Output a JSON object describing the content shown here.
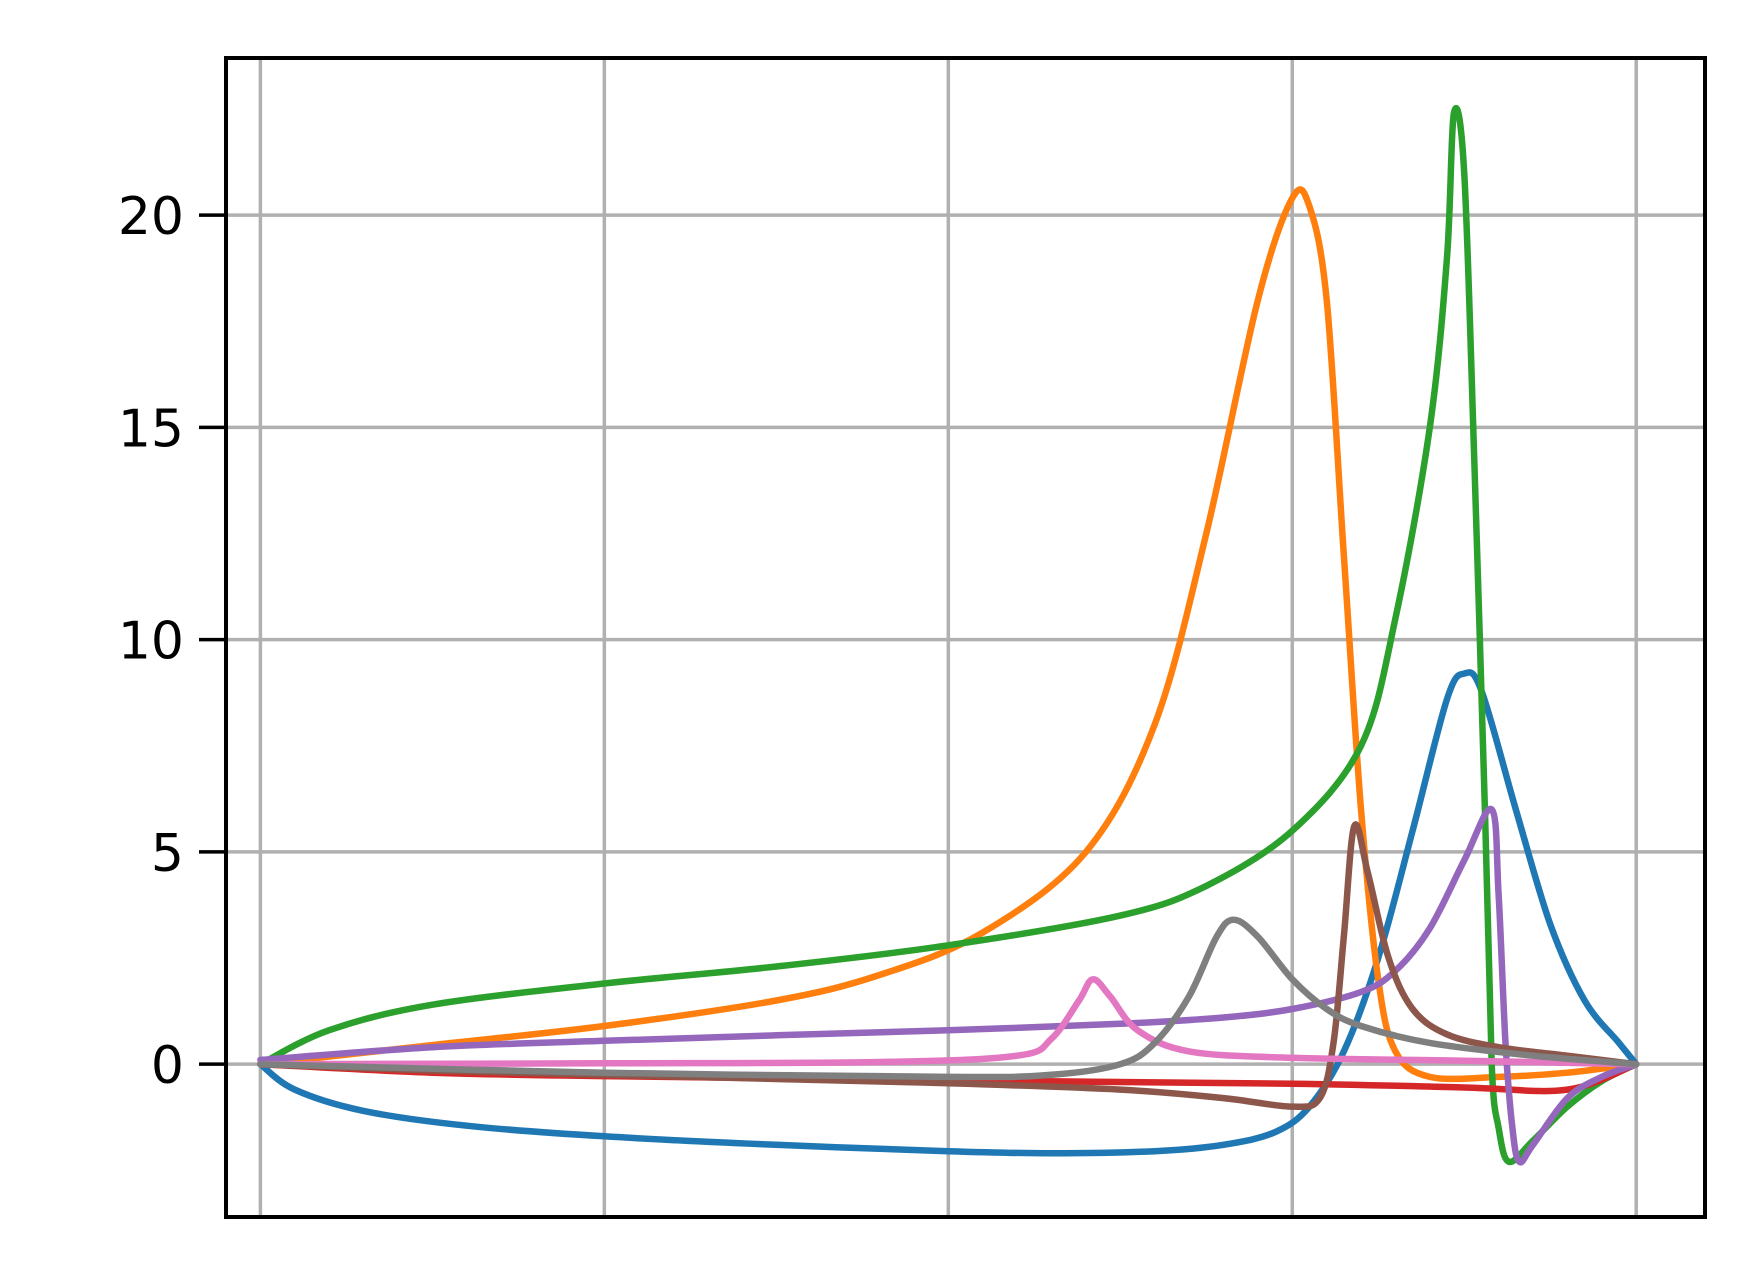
{
  "chart_data": {
    "type": "line",
    "title": "",
    "xlabel": "",
    "ylabel": "",
    "xlim": [
      -0.1,
      4.2
    ],
    "ylim": [
      -3.6,
      23.7
    ],
    "x_gridlines": [
      0,
      1,
      2,
      3,
      4
    ],
    "y_ticks": [
      0,
      5,
      10,
      15,
      20
    ],
    "y_tick_labels": [
      "0",
      "5",
      "10",
      "15",
      "20"
    ],
    "grid": true,
    "legend": "none",
    "series": [
      {
        "color": "#1f77b4",
        "points": [
          [
            0,
            0
          ],
          [
            0.1,
            -0.6
          ],
          [
            0.3,
            -1.1
          ],
          [
            0.6,
            -1.45
          ],
          [
            1,
            -1.7
          ],
          [
            1.5,
            -1.9
          ],
          [
            2,
            -2.05
          ],
          [
            2.3,
            -2.1
          ],
          [
            2.6,
            -2.05
          ],
          [
            2.8,
            -1.9
          ],
          [
            2.95,
            -1.6
          ],
          [
            3.05,
            -1.0
          ],
          [
            3.15,
            0.3
          ],
          [
            3.25,
            2.5
          ],
          [
            3.35,
            5.5
          ],
          [
            3.45,
            8.6
          ],
          [
            3.5,
            9.2
          ],
          [
            3.55,
            8.8
          ],
          [
            3.65,
            6.0
          ],
          [
            3.75,
            3.3
          ],
          [
            3.85,
            1.5
          ],
          [
            3.95,
            0.5
          ],
          [
            4,
            0
          ]
        ]
      },
      {
        "color": "#ff7f0e",
        "points": [
          [
            0,
            0
          ],
          [
            0.5,
            0.45
          ],
          [
            1,
            0.9
          ],
          [
            1.5,
            1.5
          ],
          [
            1.8,
            2.1
          ],
          [
            2.1,
            3.1
          ],
          [
            2.4,
            5.0
          ],
          [
            2.6,
            8.0
          ],
          [
            2.75,
            12.5
          ],
          [
            2.9,
            18.0
          ],
          [
            3.0,
            20.4
          ],
          [
            3.05,
            20.2
          ],
          [
            3.1,
            18.0
          ],
          [
            3.15,
            12.0
          ],
          [
            3.2,
            6.0
          ],
          [
            3.25,
            2.0
          ],
          [
            3.3,
            0.3
          ],
          [
            3.4,
            -0.3
          ],
          [
            3.6,
            -0.3
          ],
          [
            3.8,
            -0.2
          ],
          [
            4,
            0
          ]
        ]
      },
      {
        "color": "#2ca02c",
        "points": [
          [
            0,
            0
          ],
          [
            0.2,
            0.8
          ],
          [
            0.5,
            1.4
          ],
          [
            1,
            1.9
          ],
          [
            1.5,
            2.3
          ],
          [
            2,
            2.8
          ],
          [
            2.5,
            3.5
          ],
          [
            2.75,
            4.2
          ],
          [
            3,
            5.5
          ],
          [
            3.2,
            7.5
          ],
          [
            3.3,
            10.5
          ],
          [
            3.4,
            15.0
          ],
          [
            3.45,
            19.0
          ],
          [
            3.47,
            22.4
          ],
          [
            3.5,
            21.0
          ],
          [
            3.53,
            14.0
          ],
          [
            3.56,
            6.0
          ],
          [
            3.58,
            0.0
          ],
          [
            3.6,
            -1.5
          ],
          [
            3.63,
            -2.3
          ],
          [
            3.7,
            -1.8
          ],
          [
            3.8,
            -1.0
          ],
          [
            3.9,
            -0.4
          ],
          [
            4,
            0
          ]
        ]
      },
      {
        "color": "#d62728",
        "points": [
          [
            0,
            0
          ],
          [
            0.5,
            -0.2
          ],
          [
            1,
            -0.28
          ],
          [
            2,
            -0.38
          ],
          [
            3,
            -0.46
          ],
          [
            3.5,
            -0.55
          ],
          [
            3.8,
            -0.6
          ],
          [
            4,
            0
          ]
        ]
      },
      {
        "color": "#9467bd",
        "points": [
          [
            0,
            0.1
          ],
          [
            0.5,
            0.4
          ],
          [
            1,
            0.55
          ],
          [
            1.5,
            0.68
          ],
          [
            2,
            0.8
          ],
          [
            2.5,
            0.95
          ],
          [
            2.8,
            1.1
          ],
          [
            3.0,
            1.3
          ],
          [
            3.2,
            1.7
          ],
          [
            3.3,
            2.2
          ],
          [
            3.4,
            3.2
          ],
          [
            3.5,
            4.8
          ],
          [
            3.58,
            6.0
          ],
          [
            3.6,
            4.0
          ],
          [
            3.62,
            0.5
          ],
          [
            3.64,
            -1.5
          ],
          [
            3.66,
            -2.3
          ],
          [
            3.7,
            -1.9
          ],
          [
            3.8,
            -0.8
          ],
          [
            3.9,
            -0.3
          ],
          [
            4,
            0
          ]
        ]
      },
      {
        "color": "#8c564b",
        "points": [
          [
            0,
            0
          ],
          [
            0.5,
            -0.15
          ],
          [
            1,
            -0.25
          ],
          [
            1.5,
            -0.35
          ],
          [
            2,
            -0.45
          ],
          [
            2.5,
            -0.6
          ],
          [
            2.8,
            -0.8
          ],
          [
            3.0,
            -1.0
          ],
          [
            3.08,
            -0.8
          ],
          [
            3.12,
            0.5
          ],
          [
            3.15,
            3.0
          ],
          [
            3.18,
            5.6
          ],
          [
            3.22,
            4.5
          ],
          [
            3.28,
            2.5
          ],
          [
            3.35,
            1.3
          ],
          [
            3.45,
            0.7
          ],
          [
            3.6,
            0.4
          ],
          [
            3.8,
            0.2
          ],
          [
            4,
            0
          ]
        ]
      },
      {
        "color": "#e377c2",
        "points": [
          [
            0,
            0
          ],
          [
            1,
            0.02
          ],
          [
            1.8,
            0.05
          ],
          [
            2.2,
            0.2
          ],
          [
            2.3,
            0.6
          ],
          [
            2.38,
            1.5
          ],
          [
            2.42,
            2.0
          ],
          [
            2.47,
            1.6
          ],
          [
            2.55,
            0.8
          ],
          [
            2.7,
            0.3
          ],
          [
            3.0,
            0.15
          ],
          [
            3.5,
            0.08
          ],
          [
            4,
            0
          ]
        ]
      },
      {
        "color": "#7f7f7f",
        "points": [
          [
            0,
            0
          ],
          [
            1,
            -0.2
          ],
          [
            2,
            -0.3
          ],
          [
            2.3,
            -0.25
          ],
          [
            2.5,
            0.0
          ],
          [
            2.6,
            0.5
          ],
          [
            2.7,
            1.6
          ],
          [
            2.78,
            3.0
          ],
          [
            2.83,
            3.4
          ],
          [
            2.9,
            3.0
          ],
          [
            3.0,
            2.0
          ],
          [
            3.1,
            1.3
          ],
          [
            3.2,
            0.9
          ],
          [
            3.4,
            0.5
          ],
          [
            3.7,
            0.2
          ],
          [
            4,
            0
          ]
        ]
      }
    ]
  }
}
